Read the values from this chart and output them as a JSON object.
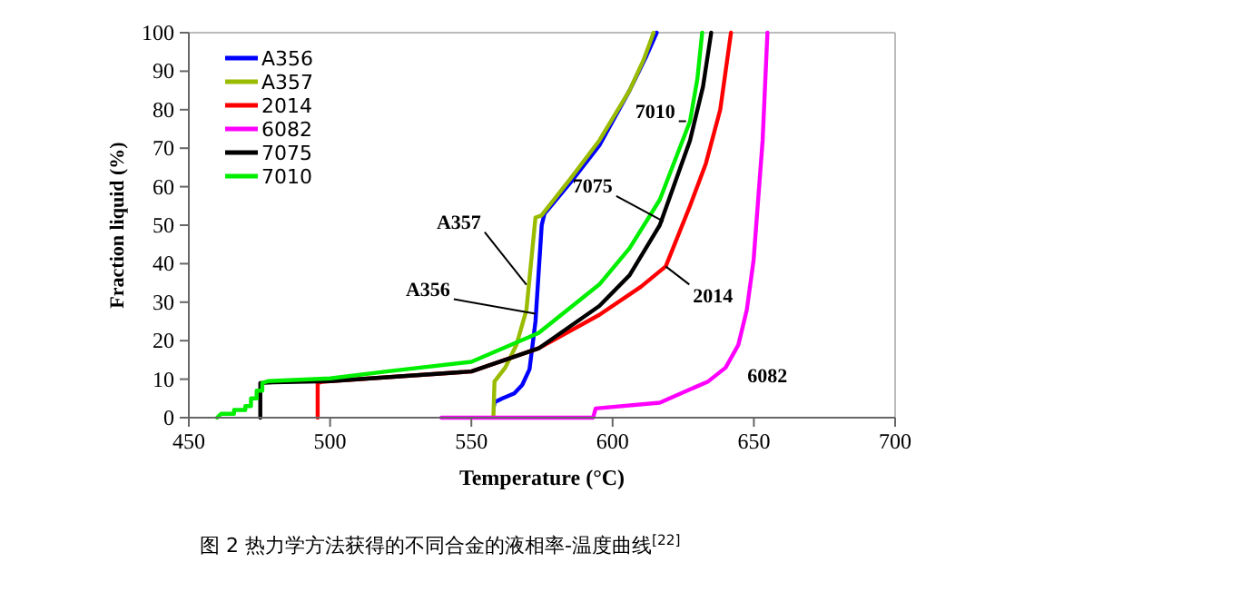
{
  "chart_data": {
    "type": "line",
    "title": "图 2 热力学方法获得的不同合金的液相率-温度曲线$^{[22]}$",
    "xlabel": "Temperature (°C)",
    "ylabel": "Fraction liquid  (%)",
    "xlim": [
      450,
      700
    ],
    "xticks": [
      450,
      500,
      550,
      600,
      650,
      700
    ],
    "ylim": [
      0,
      100
    ],
    "yticks": [
      0,
      10,
      20,
      30,
      40,
      50,
      60,
      70,
      80,
      90,
      100
    ],
    "grid": false,
    "legend": "top left",
    "marker": "none",
    "line_style": "solid",
    "series": [
      {
        "name": "A356",
        "color": "#0000ff",
        "x": [
          558,
          558.2,
          561,
          565.2,
          568,
          570.6,
          572.7,
          574.9,
          575.9,
          585,
          595.3,
          606,
          612,
          615.6
        ],
        "values": [
          3,
          4,
          5,
          6.3,
          8.5,
          12.6,
          25,
          50,
          53,
          61,
          70.7,
          85,
          94,
          100
        ]
      },
      {
        "name": "A357",
        "color": "#99bb00",
        "x": [
          557.8,
          558.2,
          562,
          566,
          569.5,
          572.7,
          574.8,
          585,
          595.3,
          606,
          611,
          614.5
        ],
        "values": [
          0,
          9.4,
          13,
          19,
          28,
          52,
          52.5,
          62,
          72,
          85,
          93,
          100
        ]
      },
      {
        "name": "2014",
        "color": "#ff0000",
        "x": [
          495.6,
          495.6,
          497,
          500,
          520,
          550,
          573.8,
          595.3,
          610,
          618.8,
          627.4,
          633,
          638.1,
          641.9
        ],
        "values": [
          0,
          9,
          9.3,
          9.5,
          10.5,
          12,
          18,
          26.7,
          34,
          39.3,
          55,
          66,
          80,
          100
        ]
      },
      {
        "name": "6082",
        "color": "#ff00ff",
        "x": [
          539.4,
          593.1,
          594,
          616.7,
          633.8,
          640,
          644.5,
          647.5,
          649.9,
          653.1,
          654.8
        ],
        "values": [
          0,
          0,
          2.4,
          3.9,
          9.4,
          13,
          18.9,
          28,
          40.9,
          72,
          100
        ]
      },
      {
        "name": "7075",
        "color": "#000000",
        "x": [
          475.3,
          475.3,
          480,
          500,
          520,
          550,
          573.8,
          595.3,
          606,
          616.7,
          627.4,
          632,
          634.9
        ],
        "values": [
          0,
          9,
          9.2,
          9.5,
          10.5,
          12,
          18,
          29,
          37,
          50,
          72,
          86,
          100
        ]
      },
      {
        "name": "7010",
        "color": "#00ee00",
        "x": [
          460,
          461.4,
          466,
          466,
          470,
          470,
          472,
          472,
          474,
          474,
          476,
          476,
          478,
          500,
          520,
          550,
          573.8,
          595.3,
          606,
          616.7,
          627.4,
          630,
          631.7
        ],
        "values": [
          0,
          1,
          1,
          2,
          2,
          3,
          3,
          5,
          5,
          7,
          7,
          9,
          9.5,
          10.2,
          12,
          14.5,
          22,
          34.6,
          44,
          56.6,
          77,
          88,
          100
        ]
      }
    ],
    "annotations": [
      {
        "text": "A357",
        "x": 569.5,
        "y": 34.5
      },
      {
        "text": "A356",
        "x": 572.7,
        "y": 27
      },
      {
        "text": "7010",
        "x": 626,
        "y": 77
      },
      {
        "text": "7075",
        "x": 618,
        "y": 51
      },
      {
        "text": "2014",
        "x": 618.8,
        "y": 39.3
      },
      {
        "text": "6082",
        "x": 640,
        "y": 13
      }
    ]
  }
}
